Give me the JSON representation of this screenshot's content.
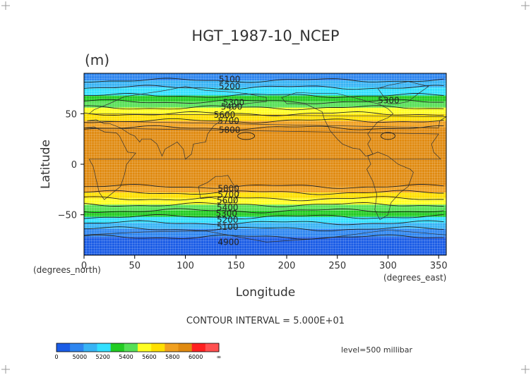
{
  "chart_data": {
    "type": "heatmap",
    "title": "HGT_1987-10_NCEP",
    "units_label": "(m)",
    "xlabel": "Longitude",
    "ylabel": "Latitude",
    "x_unit_note": "(degrees_east)",
    "y_unit_note": "(degrees_north)",
    "xlim": [
      0,
      357.5
    ],
    "ylim": [
      -90,
      90
    ],
    "x_ticks": [
      0,
      50,
      100,
      150,
      200,
      250,
      300,
      350
    ],
    "y_ticks": [
      50,
      0,
      -50
    ],
    "contour_interval_text": "CONTOUR INTERVAL = 5.000E+01",
    "level_text": "level=500 millibar",
    "colorbar": {
      "levels": [
        "0",
        "5000",
        "5200",
        "5400",
        "5600",
        "5800",
        "6000",
        "∞"
      ],
      "colors": [
        "#1a5ce6",
        "#2e86f0",
        "#38b4f5",
        "#33e0ff",
        "#22cc22",
        "#55e055",
        "#ffff22",
        "#ffe000",
        "#f0a020",
        "#e08a10",
        "#ff2020",
        "#ff5050"
      ]
    },
    "bands": [
      {
        "lat_top": 90,
        "lat_bottom": 83,
        "value": 5050
      },
      {
        "lat_top": 83,
        "lat_bottom": 76,
        "value": 5150
      },
      {
        "lat_top": 76,
        "lat_bottom": 68,
        "value": 5250
      },
      {
        "lat_top": 68,
        "lat_bottom": 62,
        "value": 5350
      },
      {
        "lat_top": 62,
        "lat_bottom": 56,
        "value": 5450
      },
      {
        "lat_top": 56,
        "lat_bottom": 50,
        "value": 5550
      },
      {
        "lat_top": 50,
        "lat_bottom": 43,
        "value": 5650
      },
      {
        "lat_top": 43,
        "lat_bottom": 36,
        "value": 5750
      },
      {
        "lat_top": 36,
        "lat_bottom": -22,
        "value": 5850
      },
      {
        "lat_top": -22,
        "lat_bottom": -28,
        "value": 5750
      },
      {
        "lat_top": -28,
        "lat_bottom": -34,
        "value": 5650
      },
      {
        "lat_top": -34,
        "lat_bottom": -40,
        "value": 5550
      },
      {
        "lat_top": -40,
        "lat_bottom": -46,
        "value": 5450
      },
      {
        "lat_top": -46,
        "lat_bottom": -52,
        "value": 5350
      },
      {
        "lat_top": -52,
        "lat_bottom": -58,
        "value": 5250
      },
      {
        "lat_top": -58,
        "lat_bottom": -64,
        "value": 5150
      },
      {
        "lat_top": -64,
        "lat_bottom": -72,
        "value": 5050
      },
      {
        "lat_top": -72,
        "lat_bottom": -90,
        "value": 4950
      }
    ],
    "contour_labels": [
      {
        "text": "5100",
        "lon": 133,
        "lat": 84
      },
      {
        "text": "5200",
        "lon": 133,
        "lat": 77
      },
      {
        "text": "5300",
        "lon": 137,
        "lat": 61
      },
      {
        "text": "5400",
        "lon": 135,
        "lat": 57
      },
      {
        "text": "5600",
        "lon": 128,
        "lat": 49
      },
      {
        "text": "5700",
        "lon": 132,
        "lat": 43
      },
      {
        "text": "5800",
        "lon": 133,
        "lat": 34
      },
      {
        "text": "5300",
        "lon": 290,
        "lat": 63
      },
      {
        "text": "5800",
        "lon": 132,
        "lat": -24
      },
      {
        "text": "5700",
        "lon": 132,
        "lat": -30
      },
      {
        "text": "5600",
        "lon": 131,
        "lat": -36
      },
      {
        "text": "5400",
        "lon": 131,
        "lat": -43
      },
      {
        "text": "5300",
        "lon": 130,
        "lat": -49
      },
      {
        "text": "5200",
        "lon": 131,
        "lat": -55
      },
      {
        "text": "5100",
        "lon": 131,
        "lat": -62
      },
      {
        "text": "4900",
        "lon": 132,
        "lat": -77
      }
    ]
  }
}
